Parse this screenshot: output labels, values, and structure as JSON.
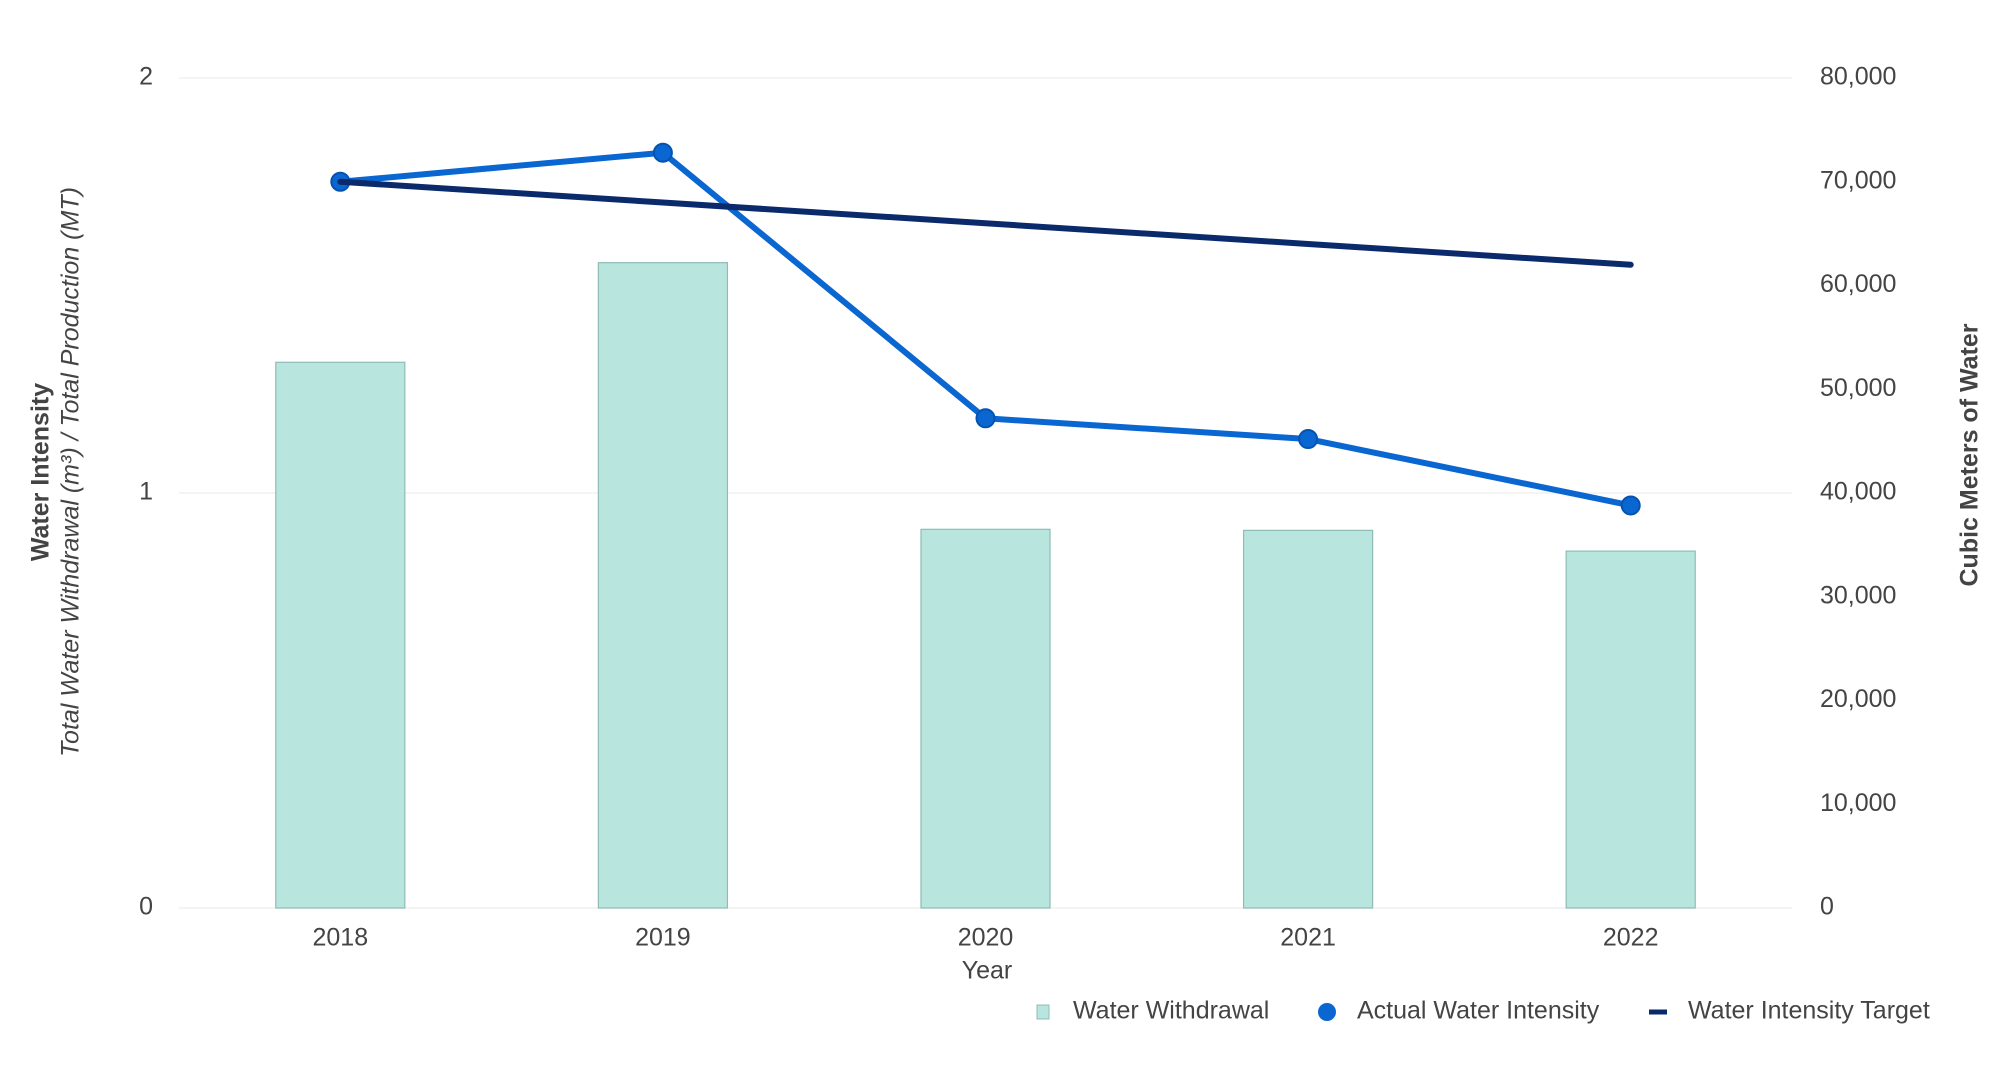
{
  "chart_data": {
    "type": "bar-line",
    "x_label": "Year",
    "y_label": "Water Intensity",
    "y_sublabel": "Total Water Withdrawal (m³) / Total Production (MT)",
    "y2_label": "Cubic Meters of Water",
    "categories": [
      "2018",
      "2019",
      "2020",
      "2021",
      "2022"
    ],
    "series": [
      {
        "name": "Water Withdrawal",
        "type": "bar",
        "axis": "y2",
        "color": "#b9e5df",
        "values": [
          52600,
          62200,
          36500,
          36400,
          34400
        ]
      },
      {
        "name": "Actual Water Intensity",
        "type": "line",
        "markers": true,
        "color": "#0a66d0",
        "values": [
          1.75,
          1.82,
          1.18,
          1.13,
          0.97
        ]
      },
      {
        "name": "Water Intensity Target",
        "type": "line",
        "markers": false,
        "color": "#0a2a6b",
        "values": [
          1.75,
          1.7,
          1.65,
          1.6,
          1.55
        ]
      }
    ],
    "ylim": [
      0,
      2
    ],
    "yticks": [
      0,
      1,
      2
    ],
    "y2lim": [
      0,
      80000
    ],
    "y2ticks": [
      0,
      {
        "value": 10000,
        "label": "10,000"
      },
      {
        "value": 20000,
        "label": "20,000"
      },
      {
        "value": 30000,
        "label": "30,000"
      },
      {
        "value": 40000,
        "label": "40,000"
      },
      {
        "value": 50000,
        "label": "50,000"
      },
      {
        "value": 60000,
        "label": "60,000"
      },
      {
        "value": 70000,
        "label": "70,000"
      },
      {
        "value": 80000,
        "label": "80,000"
      }
    ],
    "grid": true,
    "legend": "bottom-right"
  }
}
